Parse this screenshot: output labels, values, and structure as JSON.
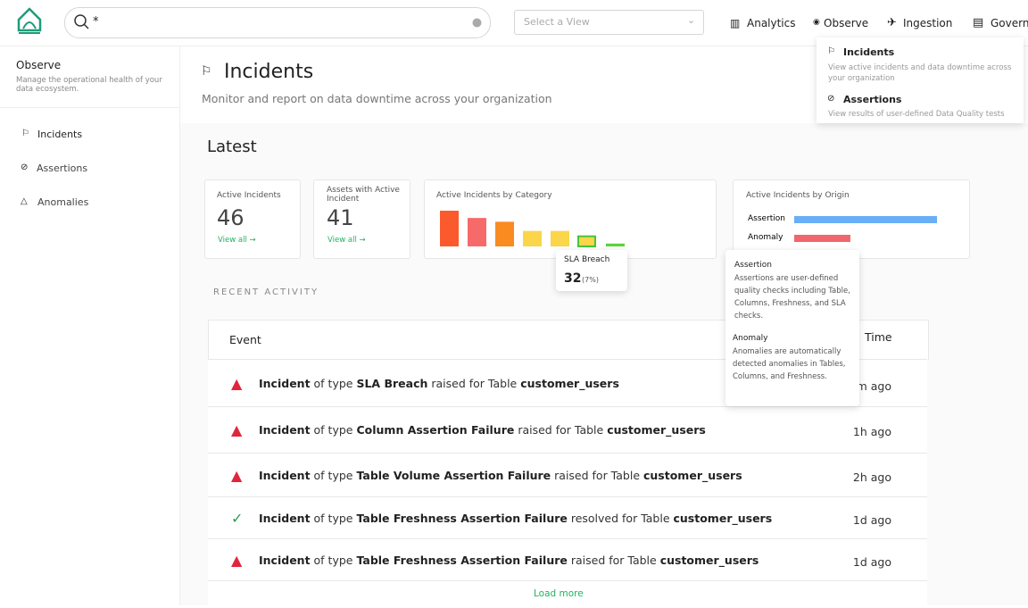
{
  "header": {
    "search_text": "*",
    "view_placeholder": "Select a View",
    "nav": [
      "Analytics",
      "Observe",
      "Ingestion",
      "Govern"
    ]
  },
  "dropdown": {
    "items": [
      {
        "title": "Incidents",
        "description": "View active incidents and data downtime across your organization"
      },
      {
        "title": "Assertions",
        "description": "View results of user-defined Data Quality tests"
      }
    ]
  },
  "sidebar": {
    "title": "Observe",
    "description": "Manage the operational health of your data ecosystem.",
    "items": [
      "Incidents",
      "Assertions",
      "Anomalies"
    ]
  },
  "page": {
    "title": "Incidents",
    "subtitle": "Monitor and report on data downtime across your organization",
    "section": "Latest"
  },
  "cards": [
    {
      "label": "Active Incidents",
      "value": "46",
      "link": "View all →"
    },
    {
      "label": "Assets with Active Incident",
      "value": "41",
      "link": "View all →"
    }
  ],
  "chart_data": [
    {
      "type": "bar",
      "title": "Active Incidents by Category",
      "categories": [
        null,
        null,
        null,
        null,
        null,
        "SLA Breach",
        null
      ],
      "values": [
        113,
        90,
        78,
        49,
        49,
        32,
        9
      ],
      "colors": [
        "#fb5a2c",
        "#f76a6a",
        "#f98b21",
        "#fbd54a",
        "#fbd54a",
        "#fbd54a",
        "#5dd23c"
      ],
      "highlight": 5,
      "tooltip_share": "(7%)"
    },
    {
      "type": "hbar",
      "title": "Active Incidents by Origin",
      "categories": [
        "Assertion",
        "Anomaly"
      ],
      "values": [
        328,
        129
      ],
      "colors": [
        "#6aaef5",
        "#f0666c"
      ],
      "tooltip": [
        {
          "title": "Assertion",
          "description": "Assertions are user-defined quality checks including Table, Columns, Freshness, and SLA checks."
        },
        {
          "title": "Anomaly",
          "description": "Anomalies are automatically detected anomalies in Tables, Columns, and Freshness."
        }
      ]
    }
  ],
  "activity": {
    "heading": "RECENT ACTIVITY",
    "columns": [
      "Event",
      "Time"
    ],
    "load_more": "Load more",
    "rows": [
      {
        "icon": "warning",
        "lead": "Incident",
        "mid": "of type",
        "type": "SLA Breach",
        "verb": "raised for Table",
        "table": "customer_users",
        "time": "m ago"
      },
      {
        "icon": "warning",
        "lead": "Incident",
        "mid": "of type",
        "type": "Column Assertion Failure",
        "verb": "raised for Table",
        "table": "customer_users",
        "time": "1h ago"
      },
      {
        "icon": "warning",
        "lead": "Incident",
        "mid": "of type",
        "type": "Table Volume Assertion Failure",
        "verb": "raised for Table",
        "table": "customer_users",
        "time": "2h ago"
      },
      {
        "icon": "check",
        "lead": "Incident",
        "mid": "of type",
        "type": "Table Freshness Assertion Failure",
        "verb": "resolved for Table",
        "table": "customer_users",
        "time": "1d ago"
      },
      {
        "icon": "warning",
        "lead": "Incident",
        "mid": "of type",
        "type": "Table Freshness Assertion Failure",
        "verb": "raised for Table",
        "table": "customer_users",
        "time": "1d ago"
      }
    ]
  }
}
